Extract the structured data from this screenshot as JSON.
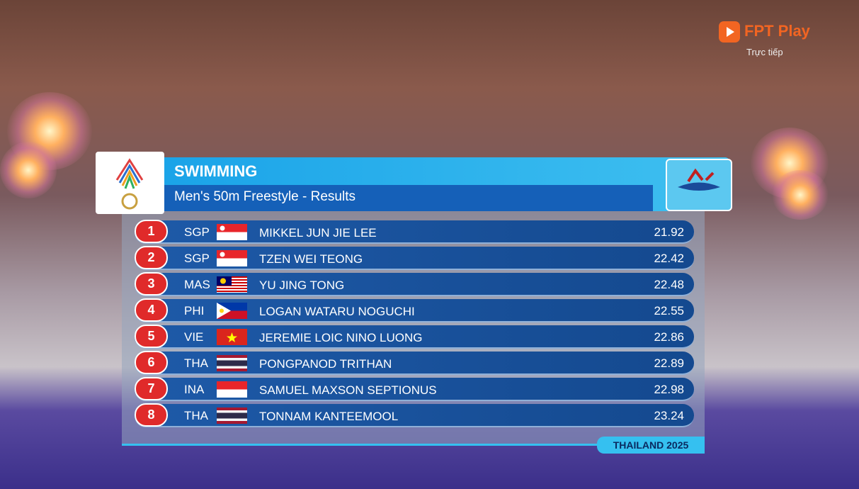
{
  "brand": {
    "name": "FPT Play",
    "status": "Trực tiếp"
  },
  "header": {
    "title": "SWIMMING",
    "subtitle": "Men's 50m Freestyle - Results"
  },
  "table": {
    "rows": [
      [
        "1",
        "SGP",
        "MIKKEL JUN JIE LEE",
        "21.92"
      ],
      [
        "2",
        "SGP",
        "TZEN WEI TEONG",
        "22.42"
      ],
      [
        "3",
        "MAS",
        "YU JING TONG",
        "22.48"
      ],
      [
        "4",
        "PHI",
        "LOGAN WATARU NOGUCHI",
        "22.55"
      ],
      [
        "5",
        "VIE",
        "JEREMIE LOIC NINO LUONG",
        "22.86"
      ],
      [
        "6",
        "THA",
        "PONGPANOD TRITHAN",
        "22.89"
      ],
      [
        "7",
        "INA",
        "SAMUEL MAXSON SEPTIONUS",
        "22.98"
      ],
      [
        "8",
        "THA",
        "TONNAM KANTEEMOOL",
        "23.24"
      ]
    ]
  },
  "footer": {
    "label": "THAILAND 2025"
  }
}
